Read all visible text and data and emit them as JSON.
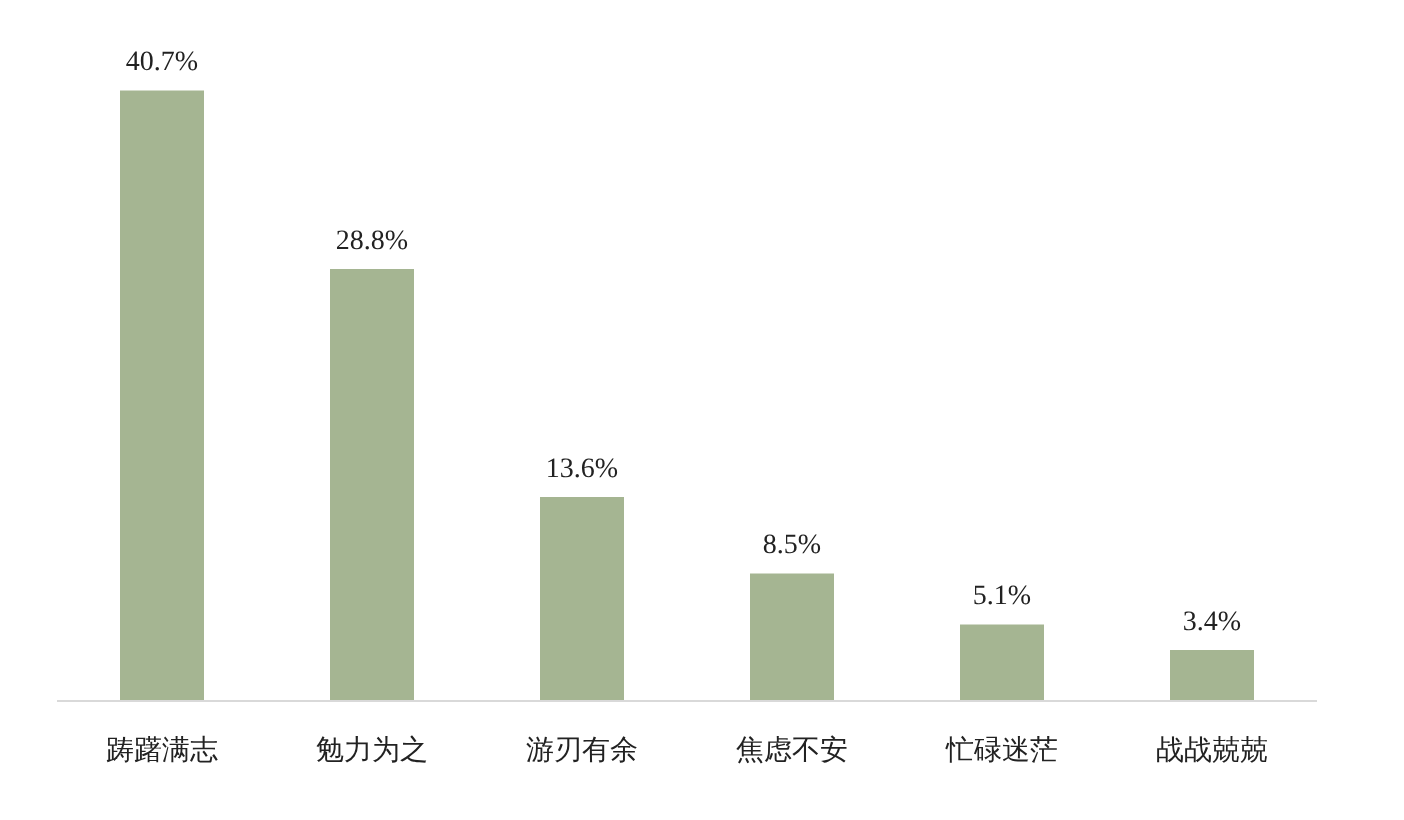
{
  "chart_data": {
    "type": "bar",
    "categories": [
      "踌躇满志",
      "勉力为之",
      "游刃有余",
      "焦虑不安",
      "忙碌迷茫",
      "战战兢兢"
    ],
    "values": [
      40.7,
      28.8,
      13.6,
      8.5,
      5.1,
      3.4
    ],
    "value_labels": [
      "40.7%",
      "28.8%",
      "13.6%",
      "8.5%",
      "5.1%",
      "3.4%"
    ],
    "color": "#a5b592",
    "grid": false
  }
}
